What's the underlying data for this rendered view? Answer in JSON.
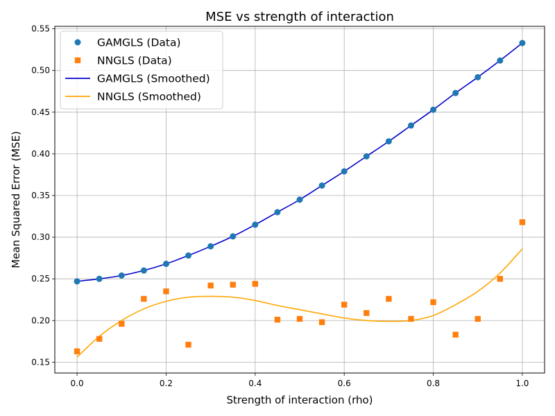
{
  "chart_data": {
    "type": "scatter",
    "title": "MSE vs strength of interaction",
    "xlabel": "Strength of interaction (rho)",
    "ylabel": "Mean Squared Error (MSE)",
    "xlim": [
      -0.05,
      1.05
    ],
    "ylim": [
      0.137,
      0.553
    ],
    "xticks": [
      0.0,
      0.2,
      0.4,
      0.6,
      0.8,
      1.0
    ],
    "xtick_labels": [
      "0.0",
      "0.2",
      "0.4",
      "0.6",
      "0.8",
      "1.0"
    ],
    "yticks": [
      0.15,
      0.2,
      0.25,
      0.3,
      0.35,
      0.4,
      0.45,
      0.5,
      0.55
    ],
    "ytick_labels": [
      "0.15",
      "0.20",
      "0.25",
      "0.30",
      "0.35",
      "0.40",
      "0.45",
      "0.50",
      "0.55"
    ],
    "grid": true,
    "legend_position": "top-left",
    "x": [
      0.0,
      0.05,
      0.1,
      0.15,
      0.2,
      0.25,
      0.3,
      0.35,
      0.4,
      0.45,
      0.5,
      0.55,
      0.6,
      0.65,
      0.7,
      0.75,
      0.8,
      0.85,
      0.9,
      0.95,
      1.0
    ],
    "series": [
      {
        "name": "GAMGLS (Data)",
        "kind": "scatter",
        "marker": "circle",
        "color": "#1f77b4",
        "values": [
          0.247,
          0.25,
          0.254,
          0.26,
          0.268,
          0.278,
          0.289,
          0.301,
          0.315,
          0.33,
          0.345,
          0.362,
          0.379,
          0.397,
          0.415,
          0.434,
          0.453,
          0.473,
          0.492,
          0.512,
          0.533
        ]
      },
      {
        "name": "NNGLS (Data)",
        "kind": "scatter",
        "marker": "square",
        "color": "#ff7f0e",
        "values": [
          0.163,
          0.178,
          0.196,
          0.226,
          0.235,
          0.171,
          0.242,
          0.243,
          0.244,
          0.201,
          0.202,
          0.198,
          0.219,
          0.209,
          0.226,
          0.202,
          0.222,
          0.183,
          0.202,
          0.25,
          0.318
        ]
      },
      {
        "name": "GAMGLS (Smoothed)",
        "kind": "line",
        "color": "#0000cd",
        "values": [
          0.247,
          0.25,
          0.254,
          0.26,
          0.268,
          0.278,
          0.289,
          0.301,
          0.315,
          0.33,
          0.345,
          0.362,
          0.379,
          0.397,
          0.415,
          0.434,
          0.453,
          0.473,
          0.492,
          0.512,
          0.533
        ]
      },
      {
        "name": "NNGLS (Smoothed)",
        "kind": "line",
        "color": "#ffa500",
        "values": [
          0.156,
          0.181,
          0.2,
          0.214,
          0.223,
          0.228,
          0.229,
          0.228,
          0.224,
          0.218,
          0.213,
          0.208,
          0.203,
          0.2,
          0.199,
          0.2,
          0.206,
          0.219,
          0.235,
          0.257,
          0.286
        ]
      }
    ]
  }
}
